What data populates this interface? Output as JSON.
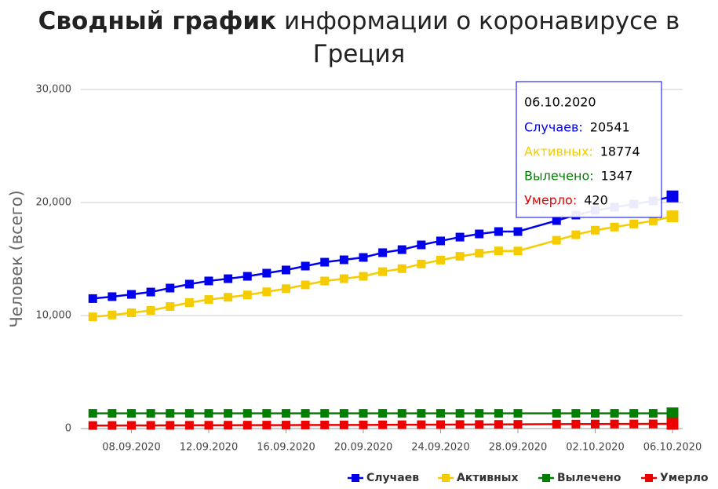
{
  "chart_data": {
    "type": "line",
    "title": {
      "bold": "Сводный график",
      "rest": "информации о коронавирусе в Греция"
    },
    "y_label": "Человек (всего)",
    "x": [
      "06.09.2020",
      "07.09.2020",
      "08.09.2020",
      "09.09.2020",
      "10.09.2020",
      "11.09.2020",
      "12.09.2020",
      "13.09.2020",
      "14.09.2020",
      "15.09.2020",
      "16.09.2020",
      "17.09.2020",
      "18.09.2020",
      "19.09.2020",
      "20.09.2020",
      "21.09.2020",
      "22.09.2020",
      "23.09.2020",
      "24.09.2020",
      "25.09.2020",
      "26.09.2020",
      "27.09.2020",
      "28.09.2020",
      "30.09.2020",
      "01.10.2020",
      "02.10.2020",
      "03.10.2020",
      "04.10.2020",
      "05.10.2020",
      "06.10.2020"
    ],
    "xlim": [
      "04.09.2020",
      "06.10.2020"
    ],
    "xticks": [
      "08.09.2020",
      "12.09.2020",
      "16.09.2020",
      "20.09.2020",
      "24.09.2020",
      "28.09.2020",
      "02.10.2020",
      "06.10.2020"
    ],
    "ylim": [
      0,
      30000
    ],
    "yticks": [
      0,
      {
        "value": 10000,
        "label": "10,000"
      },
      {
        "value": 20000,
        "label": "20,000"
      },
      {
        "value": 30000,
        "label": "30,000"
      }
    ],
    "grid": true,
    "legend": "bottom-right",
    "series": [
      {
        "name": "Случаев",
        "color": "#0000ee",
        "values": [
          11500,
          11670,
          11870,
          12080,
          12430,
          12780,
          13060,
          13260,
          13470,
          13750,
          14030,
          14375,
          14720,
          14930,
          15140,
          15560,
          15830,
          16250,
          16600,
          16940,
          17220,
          17430,
          17430,
          18400,
          18890,
          19300,
          19580,
          19860,
          20140,
          20541
        ]
      },
      {
        "name": "Активных",
        "color": "#f5cc00",
        "values": [
          9882,
          10050,
          10245,
          10451,
          10797,
          11143,
          11418,
          11615,
          11822,
          12099,
          12376,
          12715,
          13056,
          13262,
          13469,
          13883,
          14146,
          14561,
          14905,
          15237,
          15513,
          15717,
          15711,
          16660,
          17147,
          17552,
          17828,
          18104,
          18379,
          18774
        ]
      },
      {
        "name": "Вылечено",
        "color": "#007f00",
        "values": [
          1347,
          1347,
          1347,
          1347,
          1347,
          1347,
          1347,
          1347,
          1347,
          1347,
          1347,
          1347,
          1347,
          1347,
          1347,
          1347,
          1347,
          1347,
          1347,
          1347,
          1347,
          1347,
          1347,
          1347,
          1347,
          1347,
          1347,
          1347,
          1347,
          1347
        ]
      },
      {
        "name": "Умерло",
        "color": "#ee0000",
        "values": [
          271,
          273,
          278,
          282,
          286,
          290,
          295,
          298,
          301,
          304,
          307,
          313,
          317,
          321,
          324,
          330,
          337,
          342,
          348,
          356,
          360,
          366,
          372,
          393,
          396,
          401,
          405,
          409,
          414,
          420
        ]
      }
    ],
    "tooltip_labels": [
      "Случаев:",
      "Активных:",
      "Вылечено:",
      "Умерло:"
    ]
  }
}
